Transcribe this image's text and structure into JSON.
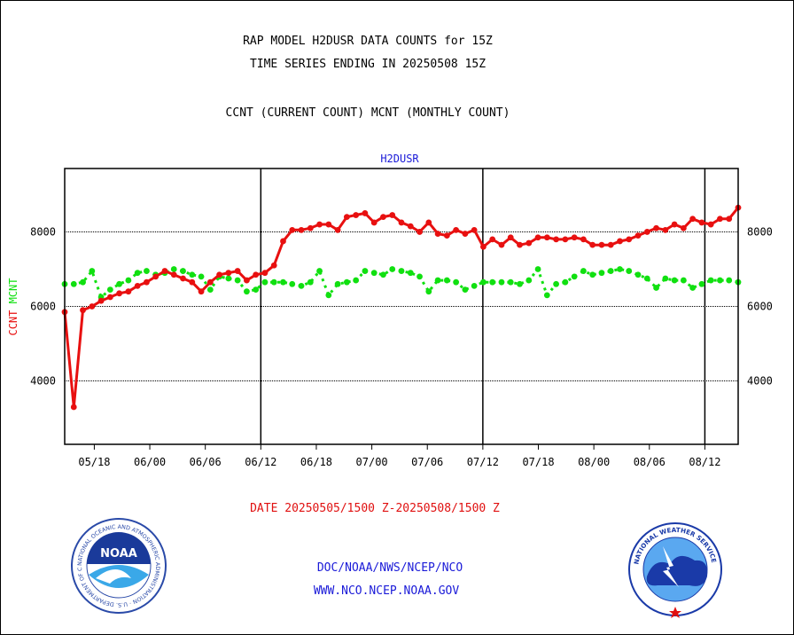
{
  "header": {
    "title1": "RAP MODEL H2DUSR DATA COUNTS for 15Z",
    "title2": "TIME SERIES ENDING IN 20250508 15Z",
    "subtitle": "CCNT (CURRENT COUNT) MCNT (MONTHLY COUNT)"
  },
  "footer": {
    "date_range": "DATE 20250505/1500 Z-20250508/1500 Z",
    "org": "DOC/NOAA/NWS/NCEP/NCO",
    "url": "WWW.NCO.NCEP.NOAA.GOV"
  },
  "logos": {
    "noaa_text": "NOAA",
    "noaa_ring": "NATIONAL OCEANIC AND ATMOSPHERIC ADMINISTRATION · U.S. DEPARTMENT OF COMMERCE ·",
    "nws_ring": "NATIONAL WEATHER SERVICE"
  },
  "colors": {
    "ccnt": "#e81010",
    "mcnt": "#10e010",
    "title_blue": "#1a1ad8",
    "date_red": "#e01010"
  },
  "chart_data": {
    "type": "line",
    "title": "H2DUSR",
    "ylabel_left": [
      "CCNT",
      "MCNT"
    ],
    "ylim": [
      2300,
      9700
    ],
    "yticks": [
      4000,
      6000,
      8000
    ],
    "ytick_labels": [
      "4000",
      "6000",
      "8000"
    ],
    "xlim": [
      0,
      91
    ],
    "x_ticks": [
      {
        "label": "05/18",
        "x": 4
      },
      {
        "label": "06/00",
        "x": 11.5
      },
      {
        "label": "06/06",
        "x": 19
      },
      {
        "label": "06/12",
        "x": 26.5
      },
      {
        "label": "06/18",
        "x": 34
      },
      {
        "label": "07/00",
        "x": 41.5
      },
      {
        "label": "07/06",
        "x": 49
      },
      {
        "label": "07/12",
        "x": 56.5
      },
      {
        "label": "07/18",
        "x": 64
      },
      {
        "label": "08/00",
        "x": 71.5
      },
      {
        "label": "08/06",
        "x": 79
      },
      {
        "label": "08/12",
        "x": 86.5
      }
    ],
    "day_lines": [
      26.5,
      56.5,
      86.5
    ],
    "grid": "horizontal dotted",
    "series": [
      {
        "name": "CCNT",
        "values": [
          5850,
          3300,
          5900,
          6000,
          6150,
          6250,
          6350,
          6400,
          6550,
          6650,
          6800,
          6950,
          6850,
          6750,
          6650,
          6400,
          6650,
          6850,
          6900,
          6950,
          6700,
          6850,
          6900,
          7100,
          7750,
          8050,
          8050,
          8100,
          8200,
          8200,
          8050,
          8400,
          8450,
          8500,
          8250,
          8400,
          8450,
          8250,
          8150,
          8000,
          8250,
          7950,
          7900,
          8050,
          7950,
          8050,
          7600,
          7800,
          7650,
          7850,
          7650,
          7700,
          7850,
          7850,
          7800,
          7800,
          7850,
          7800,
          7650,
          7650,
          7650,
          7750,
          7800,
          7900,
          8000,
          8100,
          8050,
          8200,
          8100,
          8350,
          8250,
          8200,
          8350,
          8350,
          8650
        ]
      },
      {
        "name": "MCNT",
        "values": [
          6600,
          6600,
          6650,
          6950,
          6250,
          6450,
          6600,
          6700,
          6900,
          6950,
          6850,
          6900,
          7000,
          6950,
          6850,
          6800,
          6450,
          6800,
          6750,
          6700,
          6400,
          6450,
          6650,
          6650,
          6650,
          6600,
          6550,
          6650,
          6950,
          6300,
          6600,
          6650,
          6700,
          6950,
          6900,
          6850,
          7000,
          6950,
          6900,
          6800,
          6400,
          6700,
          6700,
          6650,
          6450,
          6550,
          6650,
          6650,
          6650,
          6650,
          6600,
          6700,
          7000,
          6300,
          6600,
          6650,
          6800,
          6950,
          6850,
          6900,
          6950,
          7000,
          6950,
          6850,
          6750,
          6500,
          6750,
          6700,
          6700,
          6500,
          6600,
          6700,
          6700,
          6700,
          6650
        ]
      }
    ]
  }
}
